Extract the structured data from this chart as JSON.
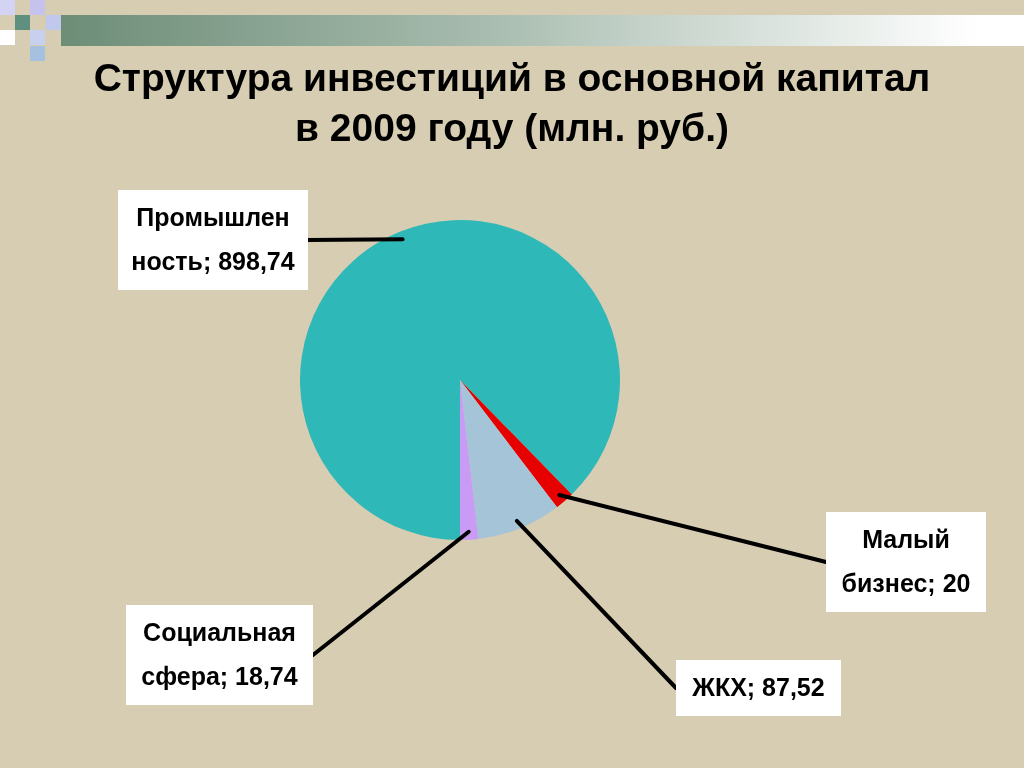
{
  "chart_data": {
    "type": "pie",
    "title": "Структура инвестиций в основной капитал в 2009 году (млн. руб.)",
    "categories": [
      "Промышленность",
      "Малый бизнес",
      "ЖКХ",
      "Социальная сфера"
    ],
    "values": [
      898.74,
      20,
      87.52,
      18.74
    ],
    "colors": [
      "#2fb8b8",
      "#e60000",
      "#a6c4d8",
      "#c99bf5"
    ],
    "value_labels": [
      "898,74",
      "20",
      "87,52",
      "18,74"
    ]
  }
}
